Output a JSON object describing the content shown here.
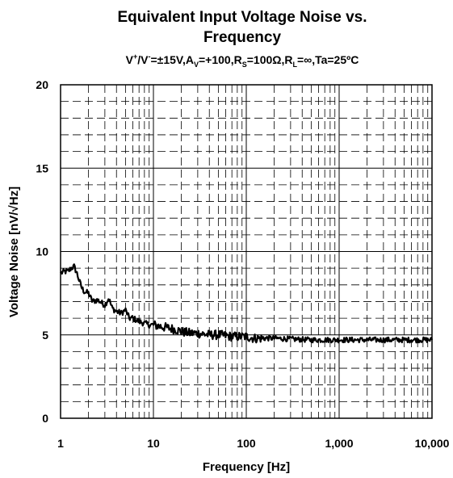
{
  "chart_data": {
    "type": "line",
    "title_line1": "Equivalent Input Voltage Noise vs.",
    "title_line2": "Frequency",
    "conditions": {
      "v_plus": "V",
      "v_plus_sup": "+",
      "v_sep": "/V",
      "v_minus_sup": "-",
      "v_value": "=±15V,",
      "av": "A",
      "av_sub": "V",
      "av_value": "=+100,",
      "rs": "R",
      "rs_sub": "S",
      "rs_value": "=100Ω,",
      "rl": "R",
      "rl_sub": "L",
      "rl_value": "=∞,Ta=25ºC"
    },
    "xlabel": "Frequency [Hz]",
    "ylabel": "Voltage Noise [nV/√Hz]",
    "x_scale": "log",
    "xlim": [
      1,
      10000
    ],
    "ylim": [
      0,
      20
    ],
    "x_ticks": [
      1,
      10,
      100,
      1000,
      10000
    ],
    "x_tick_labels": [
      "1",
      "10",
      "100",
      "1,000",
      "10,000"
    ],
    "y_ticks": [
      0,
      5,
      10,
      15,
      20
    ],
    "y_tick_labels": [
      "0",
      "5",
      "10",
      "15",
      "20"
    ],
    "grid": "major solid, minor dashed",
    "series": [
      {
        "x": [
          1.0,
          1.1,
          1.2,
          1.3,
          1.4,
          1.5,
          1.6,
          1.7,
          1.8,
          2.0,
          2.2,
          2.5,
          2.8,
          3.0,
          3.3,
          3.6,
          4.0,
          4.5,
          5.0,
          5.5,
          6.0,
          6.5,
          7.0,
          8.0,
          9.0,
          10,
          12,
          15,
          18,
          20,
          25,
          30,
          40,
          50,
          60,
          70,
          80,
          100,
          120,
          150,
          200,
          300,
          500,
          700,
          1000,
          1500,
          2000,
          3000,
          5000,
          7000,
          10000
        ],
        "y": [
          8.7,
          8.8,
          8.8,
          9.0,
          9.1,
          8.7,
          8.2,
          7.8,
          7.6,
          7.5,
          7.0,
          7.1,
          6.9,
          6.8,
          7.2,
          6.6,
          6.4,
          6.3,
          6.5,
          6.0,
          6.0,
          5.9,
          5.8,
          5.7,
          5.6,
          5.6,
          5.5,
          5.4,
          5.3,
          5.2,
          5.1,
          5.1,
          5.0,
          5.0,
          4.95,
          4.9,
          4.9,
          4.9,
          4.8,
          4.8,
          4.8,
          4.75,
          4.7,
          4.7,
          4.7,
          4.7,
          4.7,
          4.7,
          4.7,
          4.7,
          4.7
        ]
      }
    ]
  }
}
